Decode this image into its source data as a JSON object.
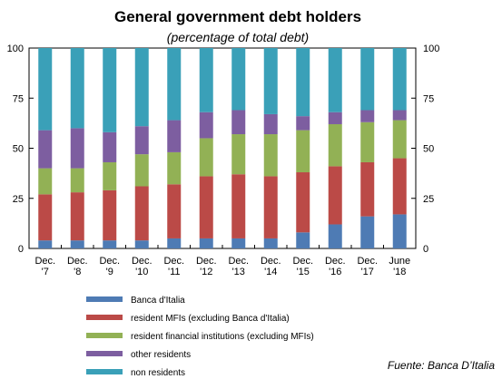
{
  "chart_data": {
    "type": "bar",
    "stacked": true,
    "title": "General government debt holders",
    "subtitle": "(percentage of total debt)",
    "categories": [
      [
        "Dec.",
        "'7"
      ],
      [
        "Dec.",
        "'8"
      ],
      [
        "Dec.",
        "'9"
      ],
      [
        "Dec.",
        "'10"
      ],
      [
        "Dec.",
        "'11"
      ],
      [
        "Dec.",
        "'12"
      ],
      [
        "Dec.",
        "'13"
      ],
      [
        "Dec.",
        "'14"
      ],
      [
        "Dec.",
        "'15"
      ],
      [
        "Dec.",
        "'16"
      ],
      [
        "Dec.",
        "'17"
      ],
      [
        "June",
        "'18"
      ]
    ],
    "ylim": [
      0,
      100
    ],
    "yticks": [
      0,
      25,
      50,
      75,
      100
    ],
    "grid": false,
    "legend_position": "bottom",
    "series": [
      {
        "name": "Banca d'Italia",
        "color": "#4e7bb4",
        "values": [
          4,
          4,
          4,
          4,
          5,
          5,
          5,
          5,
          8,
          12,
          16,
          17
        ]
      },
      {
        "name": "resident MFIs (excluding Banca d'Italia)",
        "color": "#bb4a47",
        "values": [
          23,
          24,
          25,
          27,
          27,
          31,
          32,
          31,
          30,
          29,
          27,
          28
        ]
      },
      {
        "name": "resident financial institutions (excluding MFIs)",
        "color": "#92b155",
        "values": [
          13,
          12,
          14,
          16,
          16,
          19,
          20,
          21,
          21,
          21,
          20,
          19
        ]
      },
      {
        "name": "other residents",
        "color": "#7d5ea0",
        "values": [
          19,
          20,
          15,
          14,
          16,
          13,
          12,
          10,
          7,
          6,
          6,
          5
        ]
      },
      {
        "name": "non residents",
        "color": "#3aa0b8",
        "values": [
          41,
          40,
          42,
          39,
          36,
          32,
          31,
          33,
          34,
          32,
          31,
          31
        ]
      }
    ]
  },
  "source": "Fuente: Banca D’Italia"
}
